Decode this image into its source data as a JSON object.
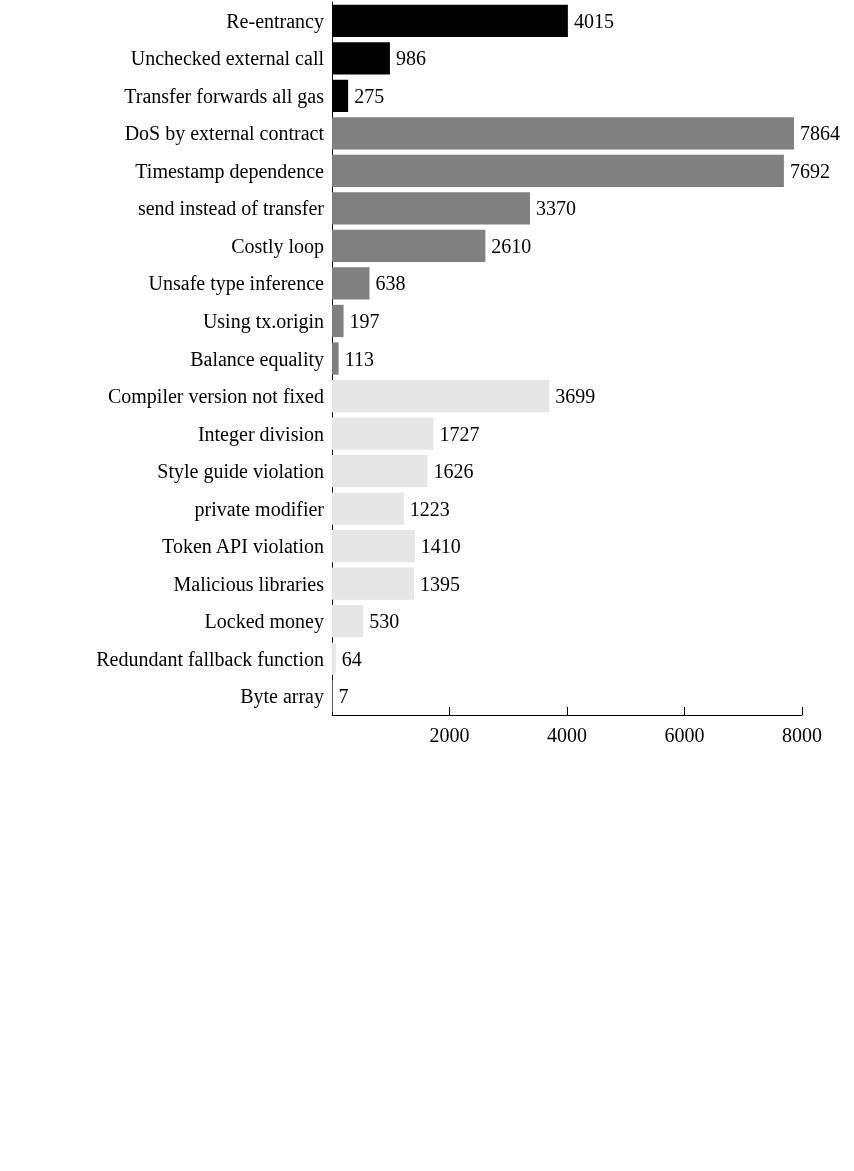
{
  "chart_data": {
    "type": "bar",
    "orientation": "horizontal",
    "categories": [
      "Re-entrancy",
      "Unchecked external call",
      "Transfer forwards all gas",
      "DoS by external contract",
      "Timestamp dependence",
      "send instead of transfer",
      "Costly loop",
      "Unsafe type inference",
      "Using tx.origin",
      "Balance equality",
      "Compiler version not fixed",
      "Integer division",
      "Style guide violation",
      "private modifier",
      "Token API violation",
      "Malicious libraries",
      "Locked money",
      "Redundant fallback function",
      "Byte array"
    ],
    "values": [
      4015,
      986,
      275,
      7864,
      7692,
      3370,
      2610,
      638,
      197,
      113,
      3699,
      1727,
      1626,
      1223,
      1410,
      1395,
      530,
      64,
      7
    ],
    "colors": [
      "#000000",
      "#000000",
      "#000000",
      "#808080",
      "#808080",
      "#808080",
      "#808080",
      "#808080",
      "#808080",
      "#808080",
      "#e6e6e6",
      "#e6e6e6",
      "#e6e6e6",
      "#e6e6e6",
      "#e6e6e6",
      "#e6e6e6",
      "#e6e6e6",
      "#e6e6e6",
      "#e6e6e6"
    ],
    "xlim": [
      0,
      8000
    ],
    "xticks": [
      2000,
      4000,
      6000,
      8000
    ],
    "data_labels": true,
    "grid": false
  }
}
